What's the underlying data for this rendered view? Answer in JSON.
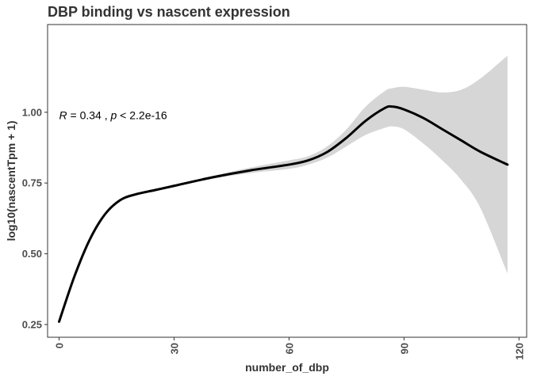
{
  "chart_data": {
    "type": "line",
    "title": "DBP binding vs nascent expression",
    "xlabel": "number_of_dbp",
    "ylabel": "log10(nascentTpm + 1)",
    "xlim": [
      -3,
      122
    ],
    "ylim": [
      0.205,
      1.31
    ],
    "x_ticks": [
      0,
      30,
      60,
      90,
      120
    ],
    "y_ticks": [
      0.25,
      0.5,
      0.75,
      1.0
    ],
    "y_tick_labels": [
      "0.25",
      "0.50",
      "0.75",
      "1.00"
    ],
    "grid": false,
    "legend": "none",
    "annotation": {
      "r_symbol": "R",
      "r_text": " = 0.34 , ",
      "p_symbol": "p",
      "p_text": " < 2.2e-16",
      "x": 0,
      "y": 0.99
    },
    "series": [
      {
        "type": "smooth",
        "color": "#000000",
        "band_color": "#d6d6d6",
        "x": [
          0,
          4,
          8,
          12,
          16,
          20,
          25,
          30,
          40,
          50,
          60,
          65,
          70,
          75,
          80,
          85,
          87,
          90,
          95,
          100,
          105,
          110,
          117
        ],
        "y": [
          0.26,
          0.42,
          0.55,
          0.64,
          0.69,
          0.71,
          0.725,
          0.74,
          0.77,
          0.795,
          0.815,
          0.83,
          0.86,
          0.91,
          0.97,
          1.015,
          1.02,
          1.01,
          0.98,
          0.94,
          0.9,
          0.86,
          0.815
        ],
        "lower": [
          0.255,
          0.415,
          0.545,
          0.635,
          0.685,
          0.705,
          0.72,
          0.735,
          0.765,
          0.785,
          0.8,
          0.815,
          0.84,
          0.88,
          0.92,
          0.945,
          0.95,
          0.94,
          0.89,
          0.83,
          0.76,
          0.66,
          0.43
        ],
        "upper": [
          0.265,
          0.425,
          0.555,
          0.645,
          0.695,
          0.715,
          0.73,
          0.745,
          0.775,
          0.805,
          0.83,
          0.845,
          0.88,
          0.94,
          1.02,
          1.075,
          1.085,
          1.09,
          1.08,
          1.07,
          1.08,
          1.12,
          1.2
        ]
      }
    ]
  }
}
